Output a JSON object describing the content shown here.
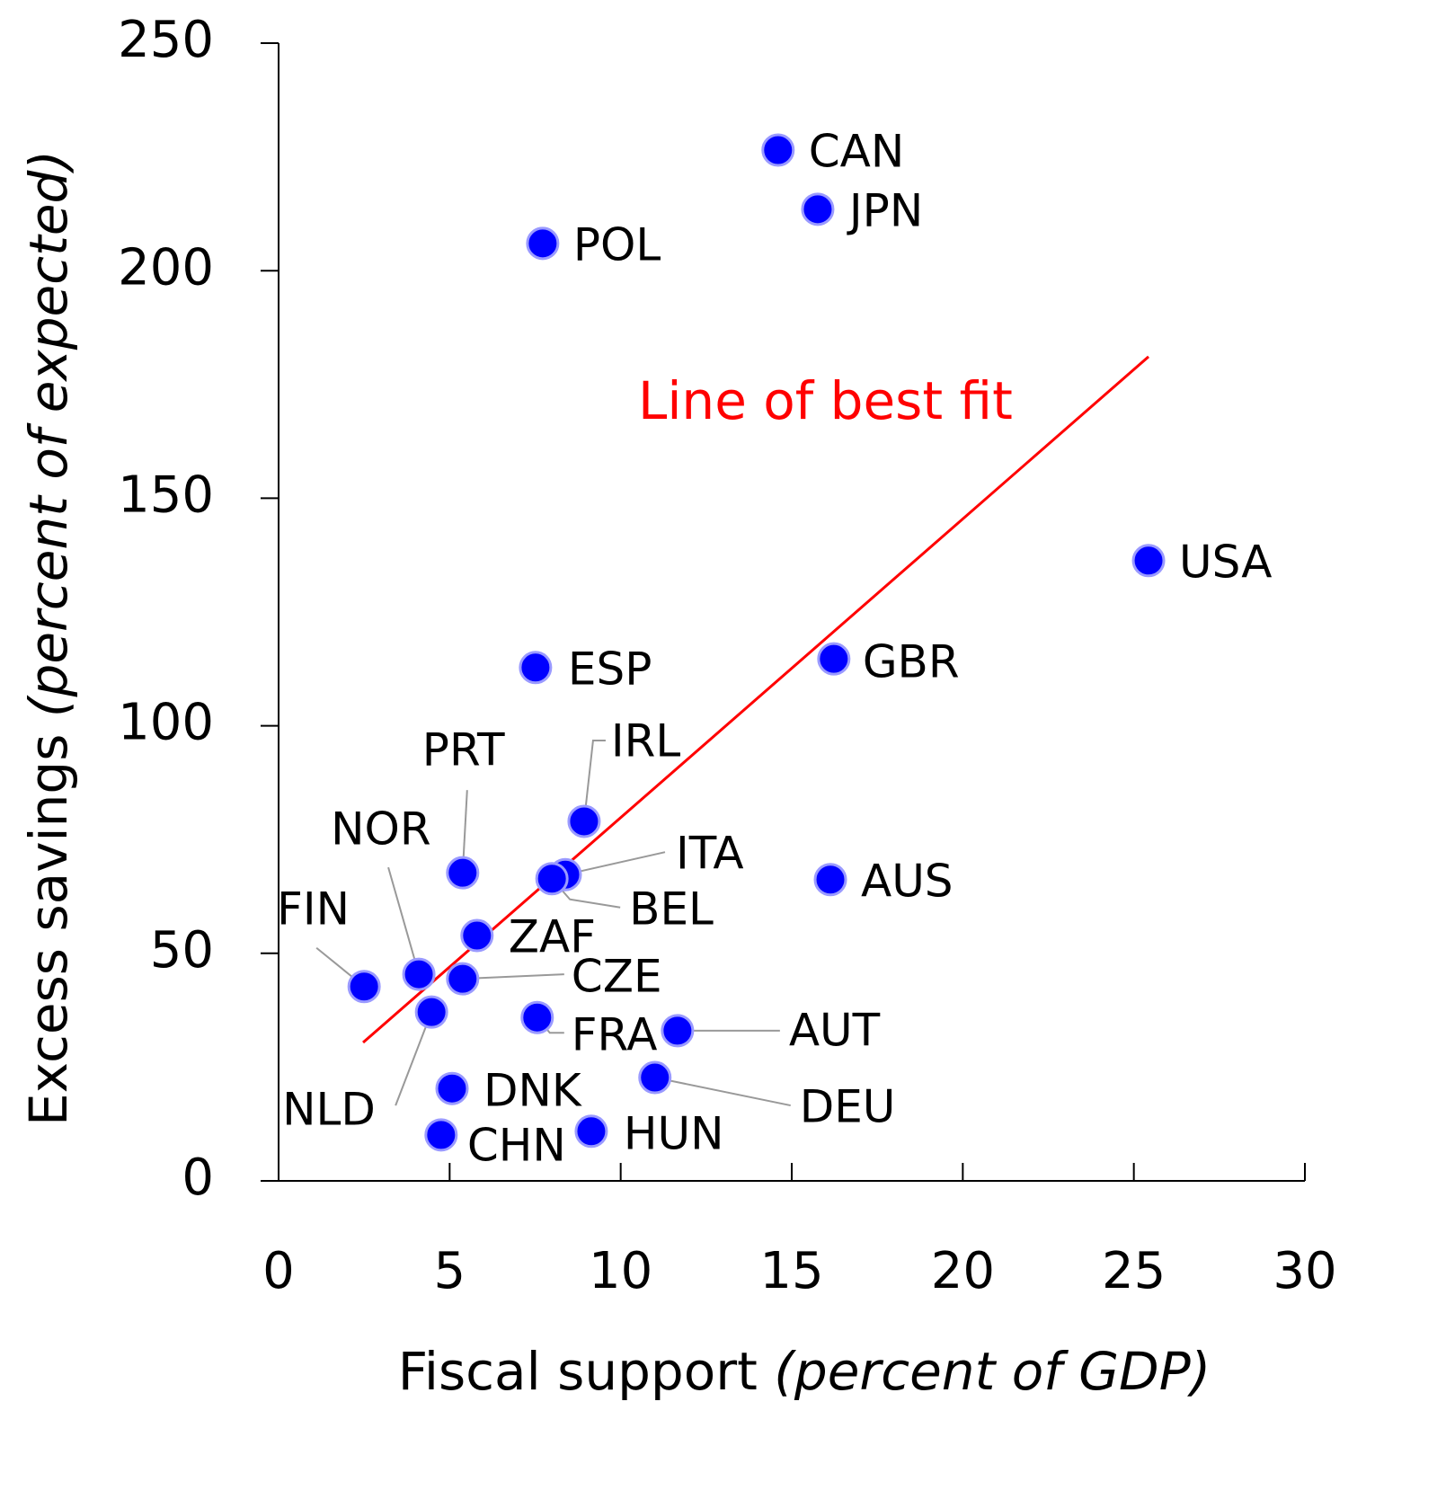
{
  "chart_data": {
    "type": "scatter",
    "xlabel": "Fiscal support",
    "xlabel_note": "(percent of GDP)",
    "ylabel": "Excess savings",
    "ylabel_note": "(percent of expected)",
    "xlim": [
      0,
      30
    ],
    "xticks": [
      0,
      5,
      10,
      15,
      20,
      25,
      30
    ],
    "ylim": [
      0,
      250
    ],
    "yticks": [
      0,
      50,
      100,
      150,
      200,
      250
    ],
    "series": [
      {
        "color": "#0000ff",
        "labels": [
          "CAN",
          "JPN",
          "POL",
          "USA",
          "GBR",
          "ESP",
          "IRL",
          "PRT",
          "ITA",
          "BEL",
          "AUS",
          "ZAF",
          "NOR",
          "CZE",
          "FIN",
          "NLD",
          "FRA",
          "AUT",
          "DEU",
          "DNK",
          "HUN",
          "CHN"
        ],
        "x": [
          14.6,
          15.76,
          7.72,
          25.43,
          16.23,
          7.51,
          8.93,
          5.38,
          8.38,
          7.99,
          16.13,
          5.8,
          4.1,
          5.38,
          2.5,
          4.47,
          7.56,
          11.66,
          11.0,
          5.07,
          9.14,
          4.75
        ],
        "values": [
          226.5,
          213.5,
          206,
          136.3,
          114.7,
          112.8,
          79,
          67.7,
          67.3,
          66.4,
          66.2,
          53.9,
          45.4,
          44.4,
          42.7,
          37.1,
          35.9,
          33,
          22.7,
          20.3,
          10.9,
          10.1
        ]
      }
    ],
    "fit_line": {
      "label": "Line of best fit",
      "color": "#ff0000",
      "x": [
        2.47,
        25.43
      ],
      "values": [
        30.4,
        181.1
      ]
    }
  }
}
